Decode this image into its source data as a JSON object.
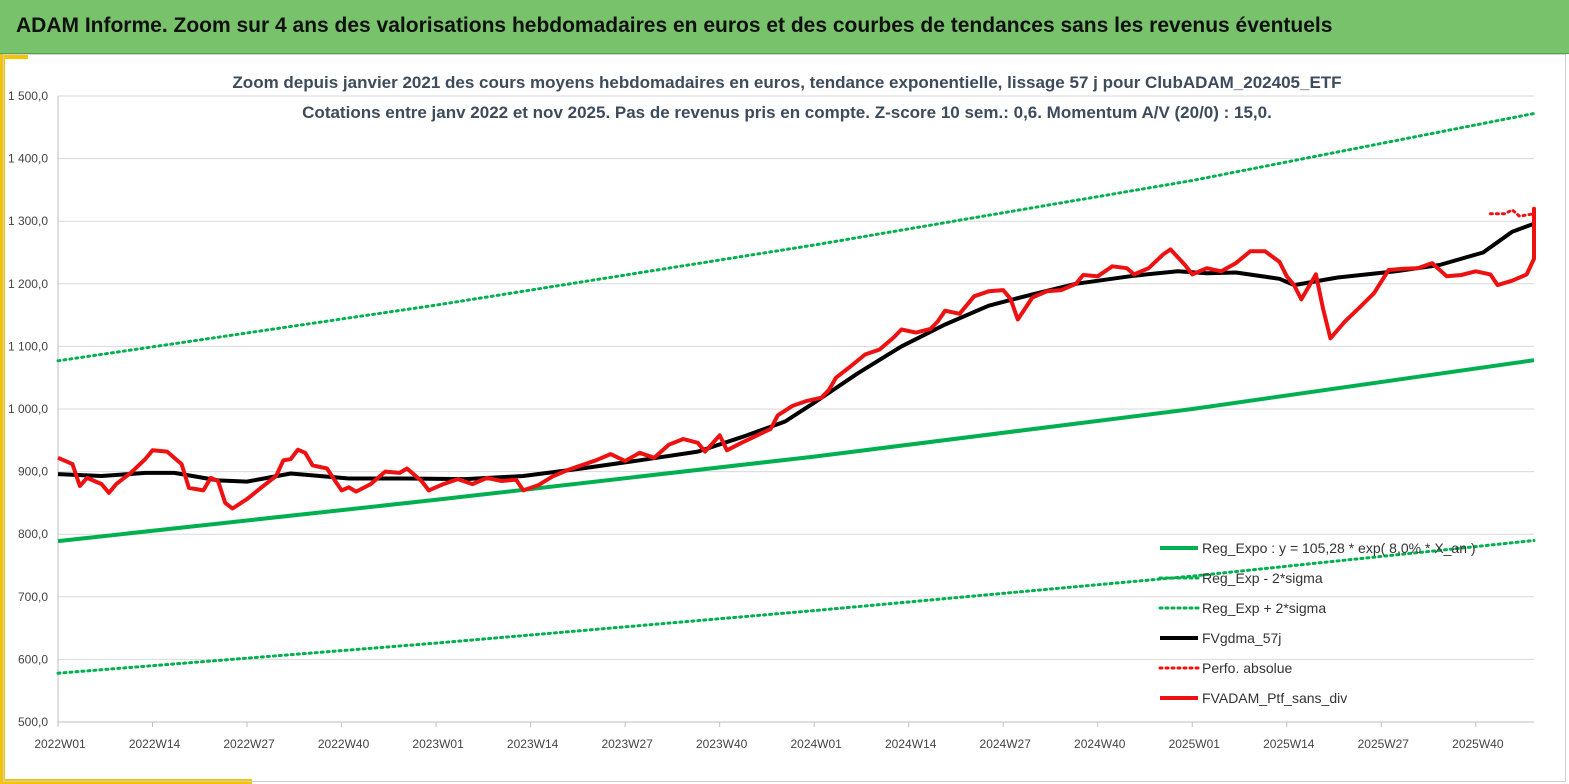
{
  "banner": {
    "title": "ADAM Informe. Zoom sur 4 ans des valorisations hebdomadaires en euros et des courbes de tendances sans les revenus éventuels"
  },
  "colors": {
    "banner_bg": "#77c26a",
    "accent_yellow": "#f5c400",
    "trend_green": "#00b050",
    "band_green": "#00b050",
    "gdma_black": "#000000",
    "ptf_red": "#ee1111"
  },
  "chart_data": {
    "type": "line",
    "title_lines": [
      "Zoom depuis janvier 2021 des cours moyens hebdomadaires  en euros, tendance exponentielle, lissage 57 j pour ClubADAM_202405_ETF",
      "Cotations  entre janv 2022 et nov 2025. Pas de revenus pris en compte. Z-score 10 sem.: 0,6. Momentum A/V (20/0) : 15,0."
    ],
    "ylim": [
      500,
      1500
    ],
    "y_ticks": [
      500,
      600,
      700,
      800,
      900,
      1000,
      1100,
      1200,
      1300,
      1400,
      1500
    ],
    "y_tick_labels": [
      "500,0",
      "600,0",
      "700,0",
      "800,0",
      "900,0",
      "1 000,0",
      "1 100,0",
      "1 200,0",
      "1 300,0",
      "1 400,0",
      "1 500,0"
    ],
    "x_range": [
      0,
      203
    ],
    "x_ticks": [
      0,
      13,
      26,
      39,
      52,
      65,
      78,
      91,
      104,
      117,
      130,
      143,
      156,
      169,
      182,
      195
    ],
    "x_tick_labels": [
      "2022W01",
      "2022W14",
      "2022W27",
      "2022W40",
      "2023W01",
      "2023W14",
      "2023W27",
      "2023W40",
      "2024W01",
      "2024W14",
      "2024W27",
      "2024W40",
      "2025W01",
      "2025W14",
      "2025W27",
      "2025W40"
    ],
    "grid": "horizontal",
    "legend_position": "bottom-right",
    "series": [
      {
        "name": "Reg_Expo : y = 105,28 * exp( 8,0% * X_an )",
        "color": "#00b050",
        "style": "solid",
        "width": 4,
        "points": [
          [
            0,
            789
          ],
          [
            52,
            855
          ],
          [
            104,
            924
          ],
          [
            156,
            1000
          ],
          [
            203,
            1078
          ]
        ]
      },
      {
        "name": "Reg_Exp - 2*sigma",
        "color": "#00b050",
        "style": "dotted",
        "width": 3,
        "points": [
          [
            0,
            578
          ],
          [
            52,
            626
          ],
          [
            104,
            678
          ],
          [
            156,
            733
          ],
          [
            203,
            790
          ]
        ]
      },
      {
        "name": "Reg_Exp + 2*sigma",
        "color": "#00b050",
        "style": "dotted",
        "width": 3,
        "points": [
          [
            0,
            1077
          ],
          [
            52,
            1166
          ],
          [
            104,
            1262
          ],
          [
            156,
            1365
          ],
          [
            203,
            1472
          ]
        ]
      },
      {
        "name": "FVgdma_57j",
        "color": "#000000",
        "style": "solid",
        "width": 4,
        "points": [
          [
            0,
            896
          ],
          [
            6,
            893
          ],
          [
            12,
            898
          ],
          [
            16,
            898
          ],
          [
            22,
            886
          ],
          [
            26,
            884
          ],
          [
            32,
            897
          ],
          [
            36,
            893
          ],
          [
            40,
            889
          ],
          [
            48,
            889
          ],
          [
            56,
            888
          ],
          [
            64,
            893
          ],
          [
            72,
            905
          ],
          [
            80,
            918
          ],
          [
            88,
            932
          ],
          [
            94,
            955
          ],
          [
            100,
            980
          ],
          [
            104,
            1010
          ],
          [
            110,
            1057
          ],
          [
            116,
            1100
          ],
          [
            122,
            1135
          ],
          [
            128,
            1165
          ],
          [
            134,
            1183
          ],
          [
            140,
            1200
          ],
          [
            148,
            1213
          ],
          [
            154,
            1220
          ],
          [
            158,
            1217
          ],
          [
            162,
            1218
          ],
          [
            168,
            1208
          ],
          [
            170,
            1198
          ],
          [
            176,
            1210
          ],
          [
            184,
            1220
          ],
          [
            190,
            1230
          ],
          [
            196,
            1250
          ],
          [
            200,
            1283
          ],
          [
            203,
            1296
          ]
        ]
      },
      {
        "name": "Perfo. absolue",
        "color": "#ee1111",
        "style": "dotted",
        "width": 3,
        "points": [
          [
            197,
            1312
          ],
          [
            199,
            1312
          ],
          [
            200,
            1318
          ],
          [
            201,
            1308
          ],
          [
            203,
            1312
          ]
        ]
      },
      {
        "name": "FVADAM_Ptf_sans_div",
        "color": "#ee1111",
        "style": "solid",
        "width": 4,
        "points": [
          [
            0,
            922
          ],
          [
            2,
            912
          ],
          [
            3,
            877
          ],
          [
            4,
            890
          ],
          [
            6,
            880
          ],
          [
            7,
            866
          ],
          [
            8,
            880
          ],
          [
            10,
            898
          ],
          [
            12,
            920
          ],
          [
            13,
            934
          ],
          [
            15,
            932
          ],
          [
            17,
            912
          ],
          [
            18,
            874
          ],
          [
            20,
            870
          ],
          [
            21,
            890
          ],
          [
            22,
            885
          ],
          [
            23,
            850
          ],
          [
            24,
            841
          ],
          [
            26,
            856
          ],
          [
            28,
            875
          ],
          [
            30,
            893
          ],
          [
            31,
            918
          ],
          [
            32,
            920
          ],
          [
            33,
            935
          ],
          [
            34,
            930
          ],
          [
            35,
            910
          ],
          [
            37,
            905
          ],
          [
            38,
            887
          ],
          [
            39,
            870
          ],
          [
            40,
            875
          ],
          [
            41,
            868
          ],
          [
            43,
            880
          ],
          [
            45,
            900
          ],
          [
            47,
            898
          ],
          [
            48,
            905
          ],
          [
            50,
            885
          ],
          [
            51,
            870
          ],
          [
            53,
            880
          ],
          [
            55,
            888
          ],
          [
            57,
            880
          ],
          [
            59,
            890
          ],
          [
            61,
            885
          ],
          [
            63,
            887
          ],
          [
            64,
            870
          ],
          [
            66,
            878
          ],
          [
            68,
            892
          ],
          [
            70,
            902
          ],
          [
            72,
            910
          ],
          [
            74,
            918
          ],
          [
            76,
            928
          ],
          [
            78,
            917
          ],
          [
            80,
            930
          ],
          [
            82,
            922
          ],
          [
            84,
            943
          ],
          [
            86,
            952
          ],
          [
            88,
            946
          ],
          [
            89,
            932
          ],
          [
            91,
            958
          ],
          [
            92,
            934
          ],
          [
            94,
            946
          ],
          [
            96,
            957
          ],
          [
            98,
            968
          ],
          [
            99,
            990
          ],
          [
            101,
            1005
          ],
          [
            103,
            1013
          ],
          [
            105,
            1018
          ],
          [
            106,
            1030
          ],
          [
            107,
            1050
          ],
          [
            109,
            1068
          ],
          [
            111,
            1087
          ],
          [
            113,
            1095
          ],
          [
            115,
            1115
          ],
          [
            116,
            1127
          ],
          [
            118,
            1122
          ],
          [
            120,
            1128
          ],
          [
            121,
            1140
          ],
          [
            122,
            1157
          ],
          [
            124,
            1152
          ],
          [
            126,
            1180
          ],
          [
            128,
            1188
          ],
          [
            130,
            1190
          ],
          [
            131,
            1176
          ],
          [
            132,
            1143
          ],
          [
            134,
            1178
          ],
          [
            136,
            1188
          ],
          [
            138,
            1190
          ],
          [
            140,
            1200
          ],
          [
            141,
            1214
          ],
          [
            143,
            1212
          ],
          [
            145,
            1228
          ],
          [
            147,
            1225
          ],
          [
            148,
            1215
          ],
          [
            150,
            1225
          ],
          [
            152,
            1247
          ],
          [
            153,
            1255
          ],
          [
            155,
            1230
          ],
          [
            156,
            1215
          ],
          [
            158,
            1225
          ],
          [
            160,
            1220
          ],
          [
            162,
            1233
          ],
          [
            164,
            1252
          ],
          [
            166,
            1252
          ],
          [
            168,
            1235
          ],
          [
            169,
            1212
          ],
          [
            170,
            1198
          ],
          [
            171,
            1175
          ],
          [
            173,
            1215
          ],
          [
            174,
            1160
          ],
          [
            175,
            1113
          ],
          [
            177,
            1140
          ],
          [
            179,
            1162
          ],
          [
            181,
            1185
          ],
          [
            183,
            1222
          ],
          [
            185,
            1224
          ],
          [
            187,
            1225
          ],
          [
            189,
            1233
          ],
          [
            191,
            1212
          ],
          [
            193,
            1214
          ],
          [
            195,
            1220
          ],
          [
            197,
            1215
          ],
          [
            198,
            1198
          ],
          [
            200,
            1205
          ],
          [
            202,
            1215
          ],
          [
            204,
            1240
          ],
          [
            206,
            1257
          ],
          [
            207,
            1290
          ],
          [
            209,
            1320
          ],
          [
            210,
            1318
          ]
        ]
      }
    ]
  }
}
